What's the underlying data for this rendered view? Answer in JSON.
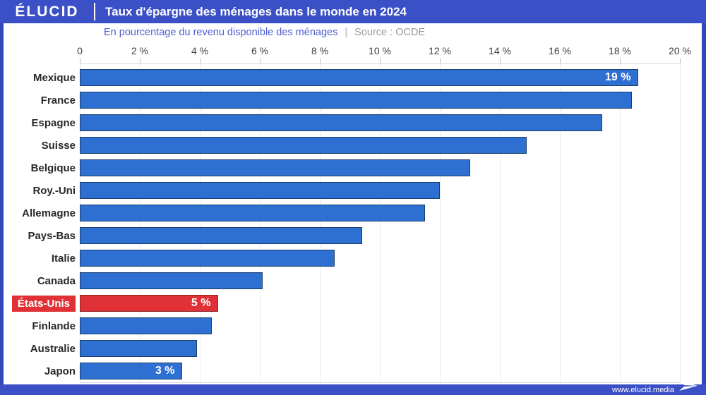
{
  "header": {
    "logo": "ÉLUCID",
    "title": "Taux d'épargne des ménages dans le monde en 2024"
  },
  "subtitle": {
    "text": "En pourcentage du revenu disponible des ménages",
    "separator": "|",
    "source": "Source : OCDE"
  },
  "footer": {
    "url": "www.elucid.media"
  },
  "colors": {
    "header_blue": "#3b50c7",
    "side_border_blue": "#3245ba",
    "bar_blue": "#2e6fd2",
    "bar_blue_border": "#1c3e69",
    "bar_red": "#e03236",
    "bar_red_border": "#8c2326",
    "subtitle_blue": "#4a5ed2",
    "source_gray": "#949aa3",
    "grid_gray": "#e9ebed"
  },
  "chart_data": {
    "type": "bar",
    "orientation": "horizontal",
    "title": "Taux d'épargne des ménages dans le monde en 2024",
    "xlabel": "En pourcentage du revenu disponible des ménages",
    "ylabel": "",
    "xlim": [
      0,
      20
    ],
    "grid": true,
    "x_ticks": [
      0,
      2,
      4,
      6,
      8,
      10,
      12,
      14,
      16,
      18,
      20
    ],
    "x_tick_labels": [
      "0",
      "2 %",
      "4 %",
      "6 %",
      "8 %",
      "10 %",
      "12 %",
      "14 %",
      "16 %",
      "18 %",
      "20 %"
    ],
    "bars": [
      {
        "country": "Mexique",
        "value": 18.6,
        "label": "19 %",
        "highlight": false
      },
      {
        "country": "France",
        "value": 18.4,
        "label": "",
        "highlight": false
      },
      {
        "country": "Espagne",
        "value": 17.4,
        "label": "",
        "highlight": false
      },
      {
        "country": "Suisse",
        "value": 14.9,
        "label": "",
        "highlight": false
      },
      {
        "country": "Belgique",
        "value": 13.0,
        "label": "",
        "highlight": false
      },
      {
        "country": "Roy.-Uni",
        "value": 12.0,
        "label": "",
        "highlight": false
      },
      {
        "country": "Allemagne",
        "value": 11.5,
        "label": "",
        "highlight": false
      },
      {
        "country": "Pays-Bas",
        "value": 9.4,
        "label": "",
        "highlight": false
      },
      {
        "country": "Italie",
        "value": 8.5,
        "label": "",
        "highlight": false
      },
      {
        "country": "Canada",
        "value": 6.1,
        "label": "",
        "highlight": false
      },
      {
        "country": "États-Unis",
        "value": 4.6,
        "label": "5 %",
        "highlight": true
      },
      {
        "country": "Finlande",
        "value": 4.4,
        "label": "",
        "highlight": false
      },
      {
        "country": "Australie",
        "value": 3.9,
        "label": "",
        "highlight": false
      },
      {
        "country": "Japon",
        "value": 3.4,
        "label": "3 %",
        "highlight": false
      }
    ]
  }
}
